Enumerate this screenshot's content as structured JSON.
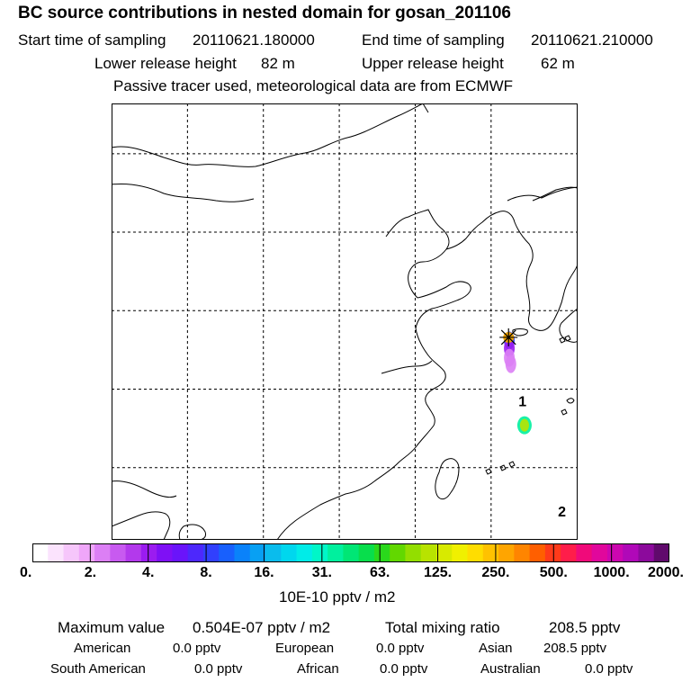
{
  "header": {
    "title": "BC  source contributions in nested domain for gosan_201106",
    "start_label": "Start time of sampling",
    "start_value": "20110621.180000",
    "end_label": "End time of sampling",
    "end_value": "20110621.210000",
    "lower_label": "Lower release height",
    "lower_value": "82 m",
    "upper_label": "Upper release height",
    "upper_value": "62 m",
    "note": "Passive tracer used, meteorological data are from ECMWF"
  },
  "chart_data": {
    "type": "heatmap",
    "title": "BC  source contributions in nested domain for gosan_201106",
    "xlabel": "",
    "ylabel": "",
    "grid": true,
    "colorbar": {
      "units": "10E-10 pptv / m2",
      "tick_labels": [
        "0.",
        "2.",
        "4.",
        "8.",
        "16.",
        "31.",
        "63.",
        "125.",
        "250.",
        "500.",
        "1000.",
        "2000."
      ],
      "tick_values": [
        0,
        2,
        4,
        8,
        16,
        31,
        63,
        125,
        250,
        500,
        1000,
        2000
      ],
      "colors": [
        "#ffffff",
        "#fbe3fd",
        "#f6c6fb",
        "#efa6f9",
        "#dc7ff5",
        "#c85af0",
        "#b339ec",
        "#9b1cf0",
        "#7f10f5",
        "#6a14fa",
        "#4d28fc",
        "#3140fd",
        "#1860fd",
        "#0a82fa",
        "#08a0f3",
        "#0abced",
        "#00d7ee",
        "#00ece8",
        "#00f6c8",
        "#00f09e",
        "#00e675",
        "#08de4c",
        "#2ad81c",
        "#62d800",
        "#93de00",
        "#b8e300",
        "#d8ea00",
        "#f0f000",
        "#ffdd00",
        "#ffc200",
        "#ffa500",
        "#ff8500",
        "#ff5f00",
        "#ff3a1a",
        "#ff1d4a",
        "#f00a7a",
        "#e1079c",
        "#cc06b0",
        "#b008b8",
        "#8c0a9c",
        "#600a6c"
      ]
    },
    "annotations": [
      {
        "text": "1",
        "lon": 126.8,
        "lat": 28.9
      },
      {
        "text": "2",
        "lon": 129.4,
        "lat": 21.9
      }
    ],
    "receptor": {
      "name": "gosan",
      "lon": 126.15,
      "lat": 33.3
    },
    "plume": [
      {
        "lon": 126.2,
        "lat": 33.1,
        "value": 8
      },
      {
        "lon": 126.2,
        "lat": 32.6,
        "value": 4
      },
      {
        "lon": 126.2,
        "lat": 32.0,
        "value": 2
      },
      {
        "lon": 126.3,
        "lat": 31.6,
        "value": 2
      },
      {
        "lon": 127.2,
        "lat": 27.7,
        "value": 40
      },
      {
        "lon": 127.2,
        "lat": 27.7,
        "value": 125
      }
    ],
    "x_grid_lons": [
      105,
      110,
      115,
      120,
      125
    ],
    "y_grid_lats": [
      45,
      40,
      35,
      30,
      25
    ]
  },
  "stats": {
    "max_label": "Maximum value",
    "max_value": "0.504E-07 pptv / m2",
    "total_label": "Total mixing ratio",
    "total_value": "208.5 pptv",
    "regions": [
      {
        "name": "American",
        "value": "0.0 pptv"
      },
      {
        "name": "European",
        "value": "0.0 pptv"
      },
      {
        "name": "Asian",
        "value": "208.5 pptv"
      },
      {
        "name": "South American",
        "value": "0.0 pptv"
      },
      {
        "name": "African",
        "value": "0.0 pptv"
      },
      {
        "name": "Australian",
        "value": "0.0 pptv"
      }
    ]
  }
}
